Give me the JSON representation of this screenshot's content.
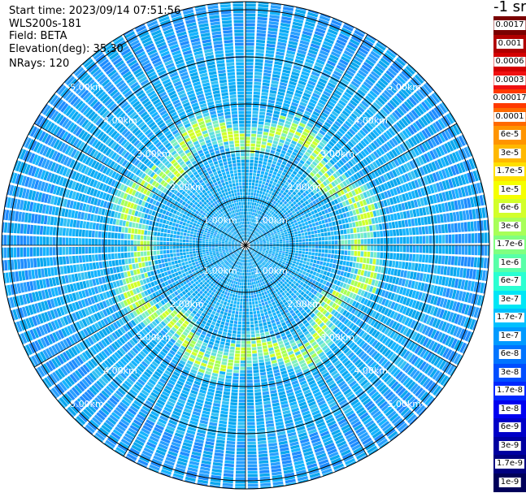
{
  "header": {
    "start_time": "Start time: 2023/09/14 07:51:56",
    "instrument": "WLS200s-181",
    "field": "Field: BETA",
    "elevation": "Elevation(deg): 35.30",
    "nrays": "NRays: 120"
  },
  "colorbar": {
    "unit_label": "-1 sr",
    "labels": [
      "0.0017",
      "0.001",
      "0.0006",
      "0.0003",
      "0.00017",
      "0.0001",
      "6e-5",
      "3e-5",
      "1.7e-5",
      "1e-5",
      "6e-6",
      "3e-6",
      "1.7e-6",
      "1e-6",
      "6e-7",
      "3e-7",
      "1.7e-7",
      "1e-7",
      "6e-8",
      "3e-8",
      "1.7e-8",
      "1e-8",
      "6e-9",
      "3e-9",
      "1.7e-9",
      "1e-9"
    ],
    "colors": [
      "#7a0000",
      "#b00000",
      "#d40000",
      "#f01010",
      "#ff3a00",
      "#ff6a00",
      "#ff9400",
      "#ffb800",
      "#ffe000",
      "#f5ff00",
      "#d2ff2a",
      "#a8ff58",
      "#80ff80",
      "#58ffa8",
      "#2affd2",
      "#00e6f5",
      "#00c0ff",
      "#009aff",
      "#0074ff",
      "#004eff",
      "#0028ff",
      "#0000f0",
      "#0000c8",
      "#0000a0",
      "#000080",
      "#00005a"
    ]
  },
  "chart_data": {
    "type": "heatmap",
    "projection": "polar (PPI scan)",
    "rays": 120,
    "range_rings_km": [
      1,
      2,
      3,
      4,
      5
    ],
    "range_labels": [
      "1.00km",
      "2.00km",
      "3.00km",
      "4.00km",
      "5.00km"
    ],
    "radial_lines": 12,
    "colorscale": "log jet, 1e-9 to 0.0017 m-1 sr-1",
    "dominant_value_range": "1e-8 to 3e-7",
    "enhanced_ring_km": 2.5,
    "enhanced_ring_value": "1.7e-6"
  }
}
